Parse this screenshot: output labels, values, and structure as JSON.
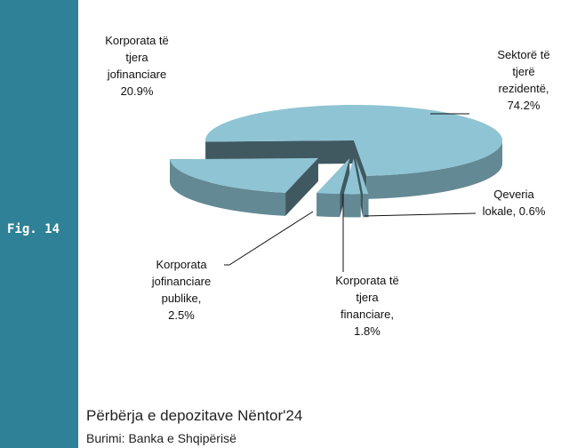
{
  "sidebar": {
    "label": "Fig. 14"
  },
  "chart_data": {
    "type": "pie",
    "title": "Përbërja e depozitave Nëntor'24",
    "source": "Burimi: Banka e Shqipërisë",
    "categories": [
      "Sektorë të tjerë rezidentë,",
      "Qeveria lokale,",
      "Korporata të tjera financiare,",
      "Korporata jofinanciare publike,",
      "Korporata të tjera jofinanciare"
    ],
    "values": [
      74.2,
      0.6,
      1.8,
      2.5,
      20.9
    ],
    "value_labels": [
      "74.2%",
      "0.6%",
      "1.8%",
      "2.5%",
      "20.9%"
    ],
    "color": "#8fc4d4"
  }
}
